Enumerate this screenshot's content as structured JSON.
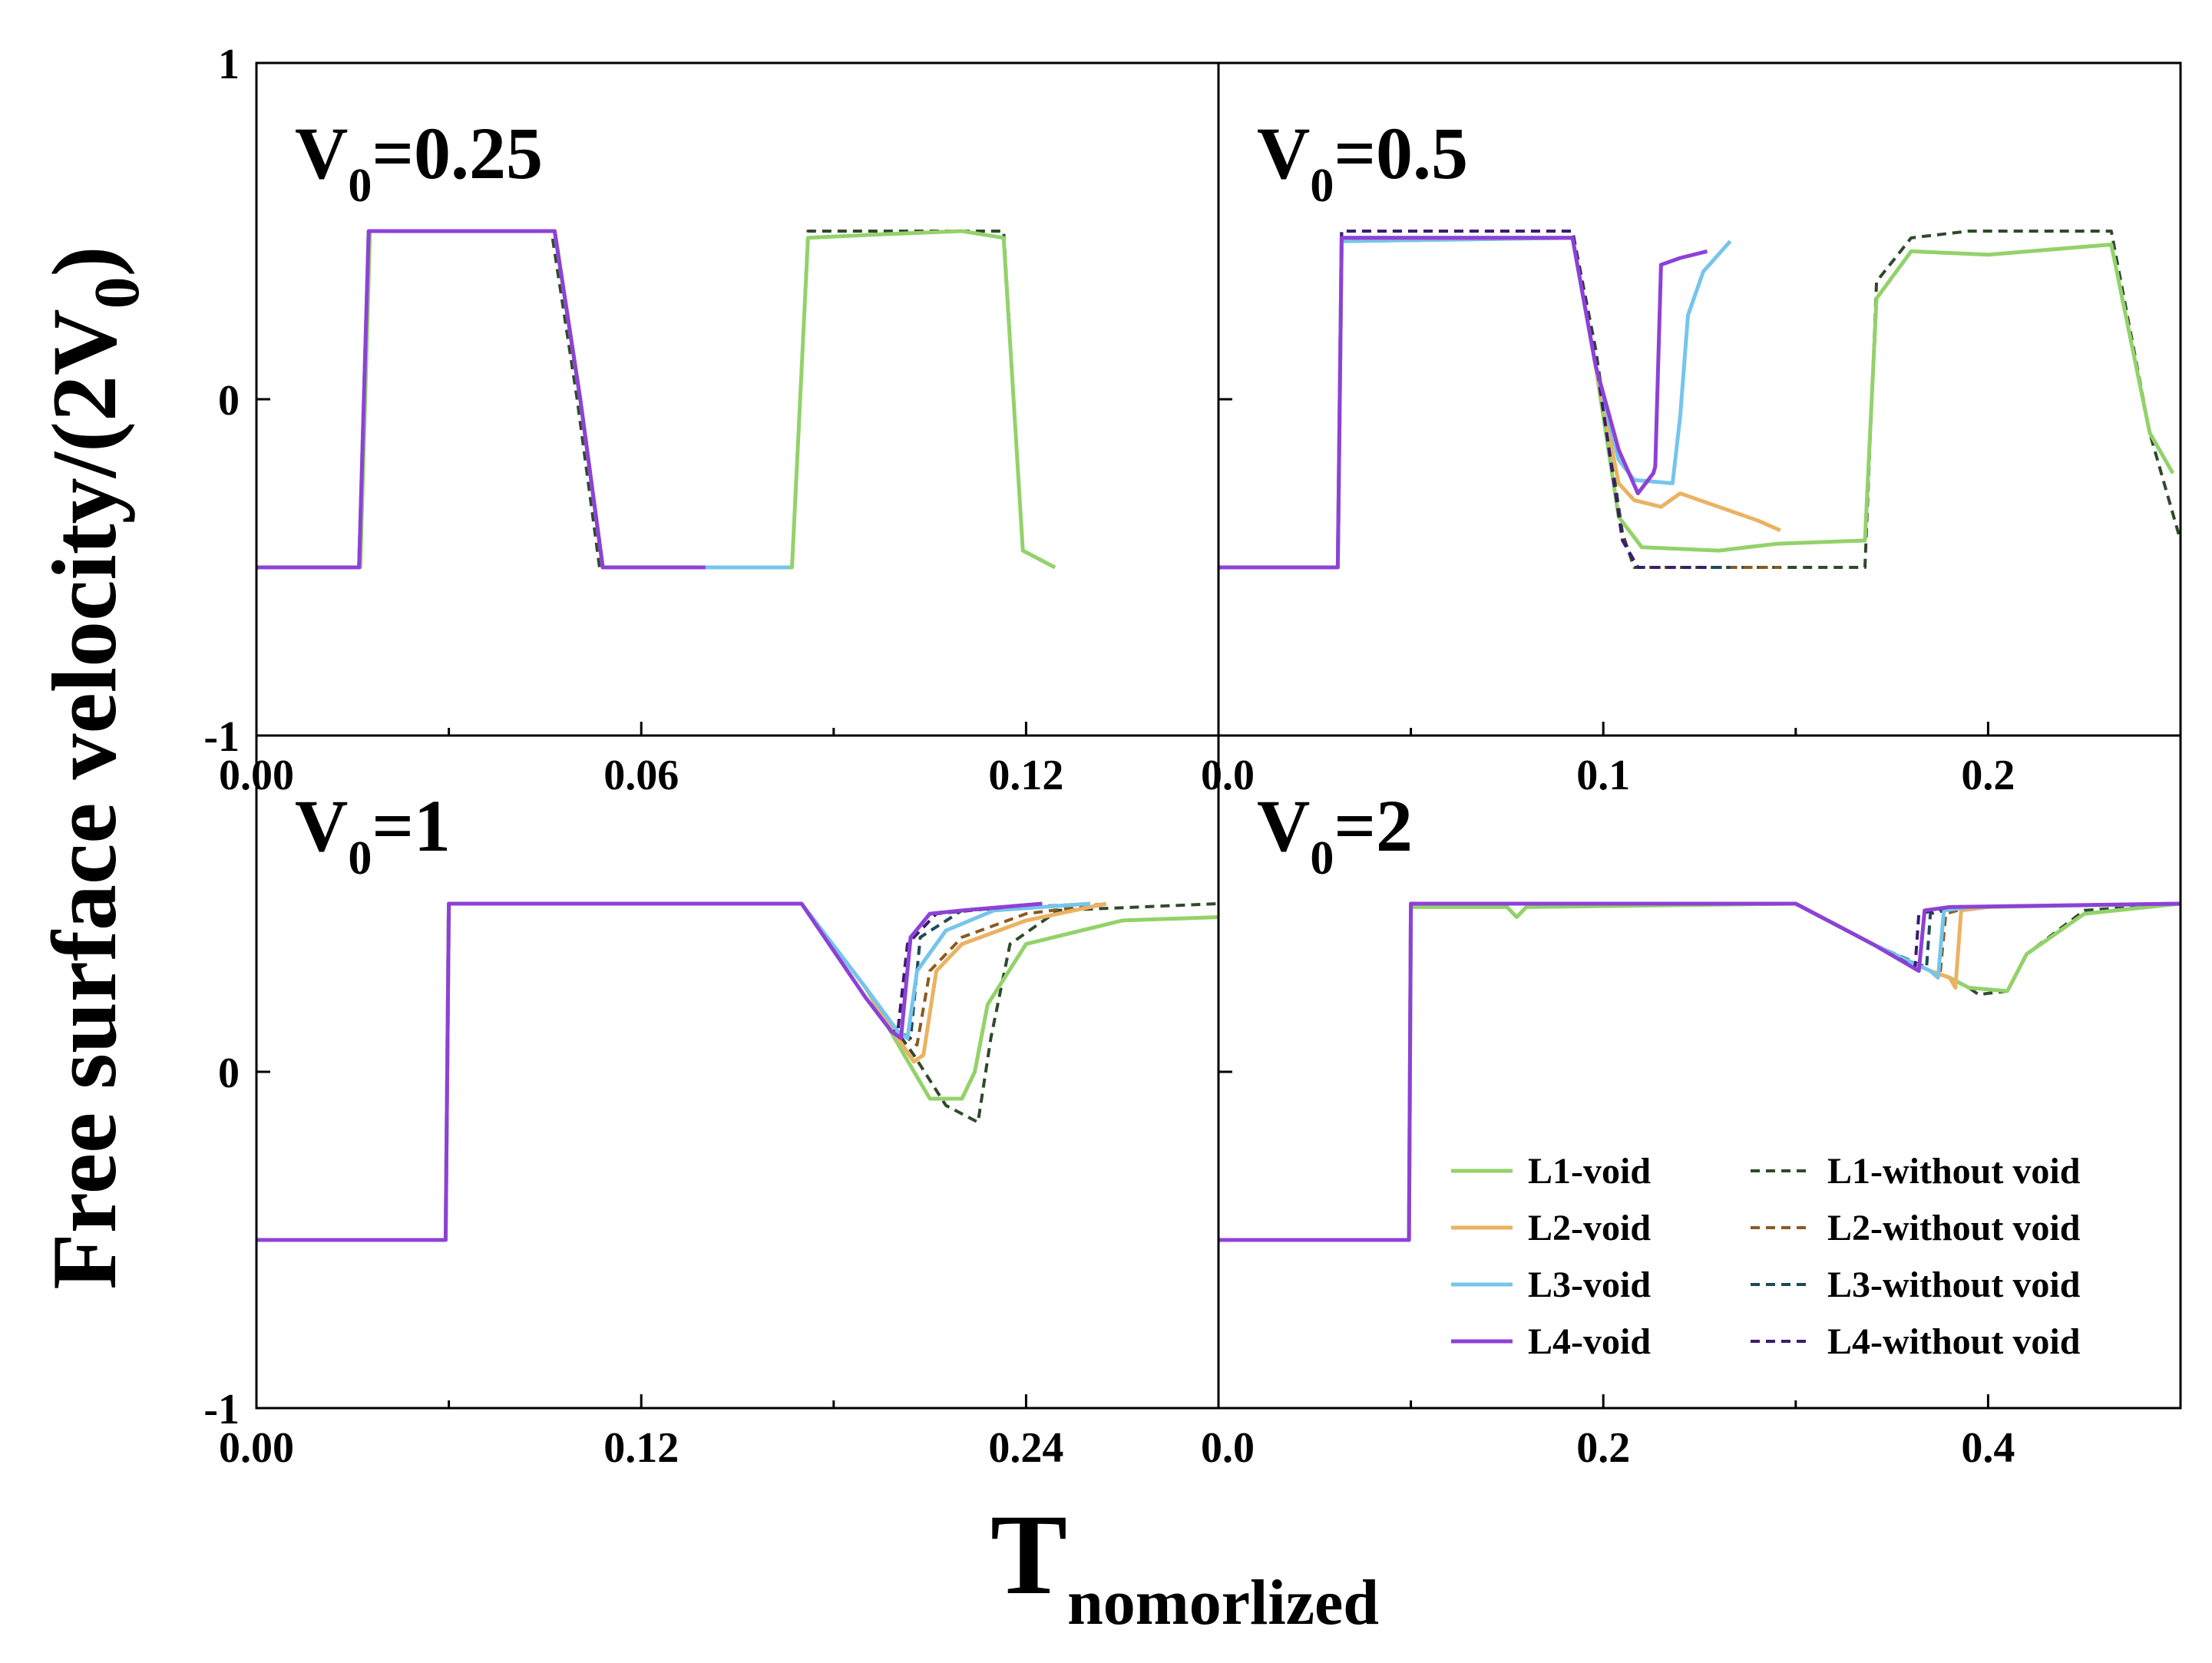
{
  "figure": {
    "ylabel_main": "Free surface velocity/(2V",
    "ylabel_sub": "0",
    "ylabel_end": ")",
    "xlabel_main": "T",
    "xlabel_sub": "nomorlized"
  },
  "colors": {
    "L1": "#93d26a",
    "L2": "#eab262",
    "L3": "#75c5ec",
    "L4": "#8d41d6",
    "L1_dash": "#2f4a2a",
    "L2_dash": "#8a5a22",
    "L3_dash": "#1f4a5a",
    "L4_dash": "#3a1c70"
  },
  "legend": [
    {
      "label": "L1-void",
      "key": "L1",
      "style": "solid"
    },
    {
      "label": "L1-without void",
      "key": "L1_dash",
      "style": "dashed"
    },
    {
      "label": "L2-void",
      "key": "L2",
      "style": "solid"
    },
    {
      "label": "L2-without void",
      "key": "L2_dash",
      "style": "dashed"
    },
    {
      "label": "L3-void",
      "key": "L3",
      "style": "solid"
    },
    {
      "label": "L3-without void",
      "key": "L3_dash",
      "style": "dashed"
    },
    {
      "label": "L4-void",
      "key": "L4",
      "style": "solid"
    },
    {
      "label": "L4-without void",
      "key": "L4_dash",
      "style": "dashed"
    }
  ],
  "chart_data": [
    {
      "type": "line",
      "title_main": "V",
      "title_sub": "0",
      "title_end": "=0.25",
      "xlim": [
        0,
        0.15
      ],
      "ylim": [
        -1,
        1
      ],
      "xticks": [
        "0.00",
        "0.06",
        "0.12"
      ],
      "xtick_values": [
        0,
        0.06,
        0.12
      ],
      "yticks": [
        "-1",
        "0",
        "1"
      ],
      "ytick_values": [
        -1,
        0,
        1
      ],
      "series": [
        {
          "name": "L1-without void",
          "key": "L1_dash",
          "style": "dashed",
          "x": [
            0,
            0.016,
            0.0175,
            0.046,
            0.05,
            0.0535,
            0.083,
            0.0835,
            0.086,
            0.1165,
            0.1195,
            0.1245
          ],
          "y": [
            -0.5,
            -0.5,
            0.5,
            0.5,
            0,
            -0.5,
            -0.5,
            -0.5,
            0.5,
            0.5,
            -0.45,
            -0.5
          ]
        },
        {
          "name": "L1-void",
          "key": "L1",
          "style": "solid",
          "x": [
            0,
            0.0162,
            0.0177,
            0.0465,
            0.0505,
            0.054,
            0.0825,
            0.0835,
            0.086,
            0.097,
            0.11,
            0.1165,
            0.1195,
            0.1245
          ],
          "y": [
            -0.5,
            -0.5,
            0.5,
            0.5,
            0,
            -0.5,
            -0.5,
            -0.5,
            0.48,
            0.49,
            0.5,
            0.48,
            -0.45,
            -0.5
          ]
        },
        {
          "name": "L2-void",
          "key": "L2",
          "style": "solid",
          "x": [
            0,
            0.016,
            0.0175,
            0.0465,
            0.0505,
            0.054,
            0.07
          ],
          "y": [
            -0.5,
            -0.5,
            0.5,
            0.5,
            0,
            -0.5,
            -0.5
          ]
        },
        {
          "name": "L3-void",
          "key": "L3",
          "style": "solid",
          "x": [
            0,
            0.016,
            0.0175,
            0.0465,
            0.0505,
            0.054,
            0.083
          ],
          "y": [
            -0.5,
            -0.5,
            0.5,
            0.5,
            0,
            -0.5,
            -0.5
          ]
        },
        {
          "name": "L4-void",
          "key": "L4",
          "style": "solid",
          "x": [
            0,
            0.016,
            0.0175,
            0.0465,
            0.0505,
            0.054,
            0.07
          ],
          "y": [
            -0.5,
            -0.5,
            0.5,
            0.5,
            0,
            -0.5,
            -0.5
          ]
        }
      ]
    },
    {
      "type": "line",
      "title_main": "V",
      "title_sub": "0",
      "title_end": "=0.5",
      "xlim": [
        0,
        0.25
      ],
      "ylim": [
        -1,
        1
      ],
      "xticks": [
        "0.0",
        "0.1",
        "0.2"
      ],
      "xtick_values": [
        0,
        0.1,
        0.2
      ],
      "yticks": [
        "-1",
        "0",
        "1"
      ],
      "ytick_values": [
        -1,
        0,
        1
      ],
      "series": [
        {
          "name": "L1-without void",
          "key": "L1_dash",
          "style": "dashed",
          "x": [
            0,
            0.031,
            0.032,
            0.092,
            0.098,
            0.105,
            0.108,
            0.168,
            0.171,
            0.18,
            0.195,
            0.232,
            0.242,
            0.25
          ],
          "y": [
            -0.5,
            -0.5,
            0.5,
            0.5,
            0.15,
            -0.4,
            -0.5,
            -0.5,
            0.35,
            0.48,
            0.5,
            0.5,
            -0.1,
            -0.42
          ]
        },
        {
          "name": "L1-void",
          "key": "L1",
          "style": "solid",
          "x": [
            0,
            0.031,
            0.032,
            0.092,
            0.098,
            0.104,
            0.11,
            0.13,
            0.145,
            0.168,
            0.171,
            0.18,
            0.2,
            0.232,
            0.242,
            0.248
          ],
          "y": [
            -0.5,
            -0.5,
            0.48,
            0.48,
            0.1,
            -0.35,
            -0.44,
            -0.45,
            -0.43,
            -0.42,
            0.3,
            0.44,
            0.43,
            0.46,
            -0.1,
            -0.22
          ]
        },
        {
          "name": "L2-void",
          "key": "L2",
          "style": "solid",
          "x": [
            0,
            0.031,
            0.032,
            0.092,
            0.098,
            0.104,
            0.108,
            0.115,
            0.12,
            0.13,
            0.14,
            0.146
          ],
          "y": [
            -0.5,
            -0.5,
            0.47,
            0.48,
            0.1,
            -0.25,
            -0.3,
            -0.32,
            -0.28,
            -0.32,
            -0.36,
            -0.39
          ]
        },
        {
          "name": "L2-without void",
          "key": "L2_dash",
          "style": "dashed",
          "x": [
            0,
            0.031,
            0.032,
            0.092,
            0.098,
            0.105,
            0.109,
            0.146
          ],
          "y": [
            -0.5,
            -0.5,
            0.5,
            0.5,
            0.12,
            -0.42,
            -0.5,
            -0.5
          ]
        },
        {
          "name": "L3-void",
          "key": "L3",
          "style": "solid",
          "x": [
            0,
            0.031,
            0.032,
            0.092,
            0.098,
            0.104,
            0.108,
            0.118,
            0.12,
            0.122,
            0.126,
            0.133
          ],
          "y": [
            -0.5,
            -0.5,
            0.47,
            0.48,
            0.1,
            -0.18,
            -0.24,
            -0.25,
            -0.05,
            0.25,
            0.38,
            0.47
          ]
        },
        {
          "name": "L3-without void",
          "key": "L3_dash",
          "style": "dashed",
          "x": [
            0,
            0.031,
            0.032,
            0.092,
            0.098,
            0.105,
            0.109,
            0.133
          ],
          "y": [
            -0.5,
            -0.5,
            0.5,
            0.5,
            0.12,
            -0.42,
            -0.5,
            -0.5
          ]
        },
        {
          "name": "L4-void",
          "key": "L4",
          "style": "solid",
          "x": [
            0,
            0.031,
            0.032,
            0.092,
            0.098,
            0.104,
            0.109,
            0.113,
            0.1135,
            0.115,
            0.12,
            0.127
          ],
          "y": [
            -0.5,
            -0.5,
            0.48,
            0.48,
            0.1,
            -0.15,
            -0.28,
            -0.22,
            -0.2,
            0.4,
            0.42,
            0.44
          ]
        },
        {
          "name": "L4-without void",
          "key": "L4_dash",
          "style": "dashed",
          "x": [
            0,
            0.031,
            0.032,
            0.092,
            0.098,
            0.105,
            0.109,
            0.127
          ],
          "y": [
            -0.5,
            -0.5,
            0.5,
            0.5,
            0.12,
            -0.42,
            -0.5,
            -0.5
          ]
        }
      ]
    },
    {
      "type": "line",
      "title_main": "V",
      "title_sub": "0",
      "title_end": "=1",
      "xlim": [
        0,
        0.3
      ],
      "ylim": [
        -1,
        1
      ],
      "xticks": [
        "0.00",
        "0.12",
        "0.24"
      ],
      "xtick_values": [
        0,
        0.12,
        0.24
      ],
      "yticks": [
        "-1",
        "0",
        "1"
      ],
      "ytick_values": [
        -1,
        0,
        1
      ],
      "series": [
        {
          "name": "L1-without void",
          "key": "L1_dash",
          "style": "dashed",
          "x": [
            0,
            0.059,
            0.06,
            0.17,
            0.19,
            0.205,
            0.215,
            0.225,
            0.229,
            0.235,
            0.25,
            0.3
          ],
          "y": [
            -0.5,
            -0.5,
            0.5,
            0.5,
            0.25,
            0.05,
            -0.1,
            -0.15,
            0.1,
            0.38,
            0.48,
            0.5
          ]
        },
        {
          "name": "L1-void",
          "key": "L1",
          "style": "solid",
          "x": [
            0,
            0.059,
            0.06,
            0.17,
            0.19,
            0.202,
            0.21,
            0.22,
            0.224,
            0.228,
            0.24,
            0.27,
            0.3
          ],
          "y": [
            -0.5,
            -0.5,
            0.5,
            0.5,
            0.25,
            0.05,
            -0.08,
            -0.08,
            0.0,
            0.2,
            0.38,
            0.45,
            0.46
          ]
        },
        {
          "name": "L2-void",
          "key": "L2",
          "style": "solid",
          "x": [
            0,
            0.059,
            0.06,
            0.17,
            0.19,
            0.2,
            0.205,
            0.208,
            0.212,
            0.22,
            0.24,
            0.265
          ],
          "y": [
            -0.5,
            -0.5,
            0.5,
            0.5,
            0.25,
            0.1,
            0.03,
            0.05,
            0.3,
            0.38,
            0.45,
            0.5
          ]
        },
        {
          "name": "L2-without void",
          "key": "L2_dash",
          "style": "dashed",
          "x": [
            0,
            0.059,
            0.06,
            0.17,
            0.19,
            0.2,
            0.206,
            0.21,
            0.22,
            0.24,
            0.265
          ],
          "y": [
            -0.5,
            -0.5,
            0.5,
            0.5,
            0.25,
            0.12,
            0.08,
            0.3,
            0.4,
            0.47,
            0.5
          ]
        },
        {
          "name": "L3-void",
          "key": "L3",
          "style": "solid",
          "x": [
            0,
            0.059,
            0.06,
            0.17,
            0.19,
            0.2,
            0.203,
            0.206,
            0.215,
            0.23,
            0.26
          ],
          "y": [
            -0.5,
            -0.5,
            0.5,
            0.5,
            0.25,
            0.12,
            0.1,
            0.3,
            0.42,
            0.48,
            0.5
          ]
        },
        {
          "name": "L3-without void",
          "key": "L3_dash",
          "style": "dashed",
          "x": [
            0,
            0.059,
            0.06,
            0.17,
            0.19,
            0.2,
            0.204,
            0.207,
            0.22,
            0.26
          ],
          "y": [
            -0.5,
            -0.5,
            0.5,
            0.5,
            0.25,
            0.12,
            0.1,
            0.4,
            0.48,
            0.5
          ]
        },
        {
          "name": "L4-void",
          "key": "L4",
          "style": "solid",
          "x": [
            0,
            0.059,
            0.06,
            0.17,
            0.19,
            0.198,
            0.201,
            0.204,
            0.21,
            0.22,
            0.245
          ],
          "y": [
            -0.5,
            -0.5,
            0.5,
            0.5,
            0.22,
            0.12,
            0.1,
            0.4,
            0.47,
            0.48,
            0.5
          ]
        },
        {
          "name": "L4-without void",
          "key": "L4_dash",
          "style": "dashed",
          "x": [
            0,
            0.059,
            0.06,
            0.17,
            0.19,
            0.198,
            0.2,
            0.203,
            0.212,
            0.245
          ],
          "y": [
            -0.5,
            -0.5,
            0.5,
            0.5,
            0.22,
            0.12,
            0.12,
            0.38,
            0.47,
            0.5
          ]
        }
      ]
    },
    {
      "type": "line",
      "title_main": "V",
      "title_sub": "0",
      "title_end": "=2",
      "xlim": [
        0,
        0.5
      ],
      "ylim": [
        -1,
        1
      ],
      "xticks": [
        "0.0",
        "0.2",
        "0.4"
      ],
      "xtick_values": [
        0,
        0.2,
        0.4
      ],
      "yticks": [
        "-1",
        "0",
        "1"
      ],
      "ytick_values": [
        -1,
        0,
        1
      ],
      "series": [
        {
          "name": "L1-without void",
          "key": "L1_dash",
          "style": "dashed",
          "x": [
            0,
            0.099,
            0.1,
            0.3,
            0.34,
            0.37,
            0.38,
            0.39,
            0.395,
            0.41,
            0.42,
            0.45,
            0.5
          ],
          "y": [
            -0.5,
            -0.5,
            0.5,
            0.5,
            0.38,
            0.3,
            0.28,
            0.25,
            0.23,
            0.24,
            0.35,
            0.48,
            0.5
          ]
        },
        {
          "name": "L1-void",
          "key": "L1",
          "style": "solid",
          "x": [
            0,
            0.099,
            0.1,
            0.15,
            0.155,
            0.16,
            0.3,
            0.34,
            0.37,
            0.38,
            0.39,
            0.41,
            0.42,
            0.45,
            0.5
          ],
          "y": [
            -0.5,
            -0.5,
            0.49,
            0.49,
            0.46,
            0.49,
            0.5,
            0.38,
            0.3,
            0.28,
            0.25,
            0.24,
            0.35,
            0.47,
            0.5
          ]
        },
        {
          "name": "L2-void",
          "key": "L2",
          "style": "solid",
          "x": [
            0,
            0.099,
            0.1,
            0.3,
            0.34,
            0.37,
            0.38,
            0.383,
            0.386,
            0.4,
            0.5
          ],
          "y": [
            -0.5,
            -0.5,
            0.5,
            0.5,
            0.38,
            0.3,
            0.28,
            0.25,
            0.48,
            0.49,
            0.5
          ]
        },
        {
          "name": "L2-without void",
          "key": "L2_dash",
          "style": "dashed",
          "x": [
            0,
            0.099,
            0.1,
            0.3,
            0.34,
            0.37,
            0.375,
            0.378,
            0.39,
            0.5
          ],
          "y": [
            -0.5,
            -0.5,
            0.5,
            0.5,
            0.38,
            0.3,
            0.29,
            0.47,
            0.49,
            0.5
          ]
        },
        {
          "name": "L3-void",
          "key": "L3",
          "style": "solid",
          "x": [
            0,
            0.099,
            0.1,
            0.3,
            0.34,
            0.37,
            0.374,
            0.377,
            0.39,
            0.5
          ],
          "y": [
            -0.5,
            -0.5,
            0.5,
            0.5,
            0.38,
            0.3,
            0.28,
            0.48,
            0.49,
            0.5
          ]
        },
        {
          "name": "L3-without void",
          "key": "L3_dash",
          "style": "dashed",
          "x": [
            0,
            0.099,
            0.1,
            0.3,
            0.34,
            0.368,
            0.37,
            0.385,
            0.5
          ],
          "y": [
            -0.5,
            -0.5,
            0.5,
            0.5,
            0.38,
            0.31,
            0.47,
            0.49,
            0.5
          ]
        },
        {
          "name": "L4-void",
          "key": "L4",
          "style": "solid",
          "x": [
            0,
            0.099,
            0.1,
            0.3,
            0.34,
            0.364,
            0.367,
            0.38,
            0.5
          ],
          "y": [
            -0.5,
            -0.5,
            0.5,
            0.5,
            0.38,
            0.3,
            0.48,
            0.49,
            0.5
          ]
        },
        {
          "name": "L4-without void",
          "key": "L4_dash",
          "style": "dashed",
          "x": [
            0,
            0.099,
            0.1,
            0.3,
            0.34,
            0.362,
            0.364,
            0.38,
            0.5
          ],
          "y": [
            -0.5,
            -0.5,
            0.5,
            0.5,
            0.38,
            0.31,
            0.47,
            0.49,
            0.5
          ]
        }
      ]
    }
  ]
}
